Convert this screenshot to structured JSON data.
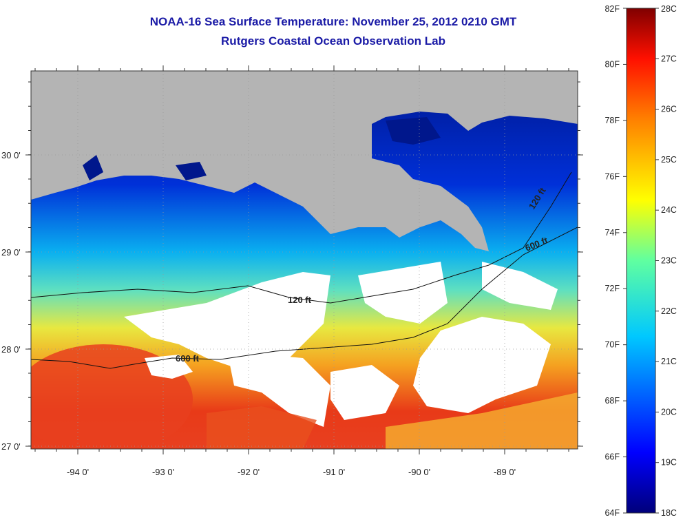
{
  "title_line1": "NOAA-16 Sea Surface Temperature:  November 25, 2012 0210 GMT",
  "title_line2": "Rutgers Coastal Ocean Observation Lab",
  "lon_labels": [
    "-94 0'",
    "-93 0'",
    "-92 0'",
    "-91 0'",
    "-90 0'",
    "-89 0'"
  ],
  "lat_labels": [
    "30 0'",
    "29 0'",
    "28 0'",
    "27 0'"
  ],
  "contour_labels": [
    "120 ft",
    "120 ft",
    "600 ft",
    "600 ft"
  ],
  "colorbar": {
    "fahrenheit": [
      "82F",
      "80F",
      "78F",
      "76F",
      "74F",
      "72F",
      "70F",
      "68F",
      "66F",
      "64F"
    ],
    "celsius": [
      "28C",
      "27C",
      "26C",
      "25C",
      "24C",
      "23C",
      "22C",
      "21C",
      "20C",
      "19C",
      "18C"
    ]
  },
  "colors": {
    "land": "#b4b4b4",
    "cloud": "#ffffff",
    "title": "#1a1aa6"
  }
}
